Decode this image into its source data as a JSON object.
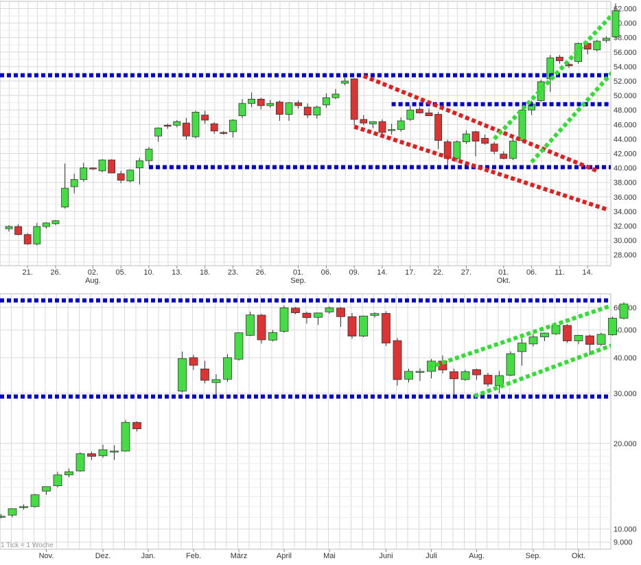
{
  "chart_data": [
    {
      "type": "candlestick",
      "period": "daily",
      "ylim": [
        26500,
        63000
      ],
      "y_ticks": [
        28000,
        30000,
        32000,
        34000,
        36000,
        38000,
        40000,
        42000,
        44000,
        46000,
        48000,
        50000,
        52000,
        54000,
        56000,
        58000,
        60000,
        62000
      ],
      "y_tick_labels": [
        "28.000",
        "30.000",
        "32.000",
        "34.000",
        "36.000",
        "38.000",
        "40.000",
        "42.000",
        "44.000",
        "46.000",
        "48.000",
        "50.000",
        "52.000",
        "54.000",
        "56.000",
        "58.000",
        "60.000",
        "62.000"
      ],
      "x_labels": [
        {
          "text": "21.",
          "month": "",
          "slot": 2
        },
        {
          "text": "26.",
          "month": "",
          "slot": 5
        },
        {
          "text": "02.",
          "month": "Aug.",
          "slot": 9
        },
        {
          "text": "05.",
          "month": "",
          "slot": 12
        },
        {
          "text": "10.",
          "month": "",
          "slot": 15
        },
        {
          "text": "13.",
          "month": "",
          "slot": 18
        },
        {
          "text": "18.",
          "month": "",
          "slot": 21
        },
        {
          "text": "23.",
          "month": "",
          "slot": 24
        },
        {
          "text": "26.",
          "month": "",
          "slot": 27
        },
        {
          "text": "01.",
          "month": "Sep.",
          "slot": 31
        },
        {
          "text": "06.",
          "month": "",
          "slot": 34
        },
        {
          "text": "09.",
          "month": "",
          "slot": 37
        },
        {
          "text": "14.",
          "month": "",
          "slot": 40
        },
        {
          "text": "17.",
          "month": "",
          "slot": 43
        },
        {
          "text": "22.",
          "month": "",
          "slot": 46
        },
        {
          "text": "27.",
          "month": "",
          "slot": 49
        },
        {
          "text": "01.",
          "month": "Okt.",
          "slot": 53
        },
        {
          "text": "06.",
          "month": "",
          "slot": 56
        },
        {
          "text": "11.",
          "month": "",
          "slot": 59
        },
        {
          "text": "14.",
          "month": "",
          "slot": 62
        }
      ],
      "candles": [
        {
          "o": 31600,
          "h": 32100,
          "l": 31200,
          "c": 31900
        },
        {
          "o": 31900,
          "h": 32200,
          "l": 30700,
          "c": 30800
        },
        {
          "o": 30800,
          "h": 31000,
          "l": 29400,
          "c": 29500
        },
        {
          "o": 29500,
          "h": 32400,
          "l": 29300,
          "c": 31900
        },
        {
          "o": 31900,
          "h": 32500,
          "l": 31600,
          "c": 32400
        },
        {
          "o": 32300,
          "h": 32800,
          "l": 32100,
          "c": 32700
        },
        {
          "o": 34600,
          "h": 40600,
          "l": 34400,
          "c": 37200
        },
        {
          "o": 37400,
          "h": 39200,
          "l": 36500,
          "c": 38400
        },
        {
          "o": 38400,
          "h": 40700,
          "l": 38100,
          "c": 40000
        },
        {
          "o": 40000,
          "h": 40100,
          "l": 39700,
          "c": 39900
        },
        {
          "o": 39600,
          "h": 41200,
          "l": 39400,
          "c": 41100
        },
        {
          "o": 41100,
          "h": 41200,
          "l": 39300,
          "c": 39300
        },
        {
          "o": 39200,
          "h": 39600,
          "l": 37900,
          "c": 38300
        },
        {
          "o": 38200,
          "h": 39800,
          "l": 38000,
          "c": 39700
        },
        {
          "o": 40000,
          "h": 41400,
          "l": 37700,
          "c": 41000
        },
        {
          "o": 41000,
          "h": 42900,
          "l": 40300,
          "c": 42600
        },
        {
          "o": 44400,
          "h": 45600,
          "l": 43600,
          "c": 45500
        },
        {
          "o": 45900,
          "h": 46100,
          "l": 45400,
          "c": 45800
        },
        {
          "o": 45900,
          "h": 46600,
          "l": 45600,
          "c": 46400
        },
        {
          "o": 46200,
          "h": 46900,
          "l": 43900,
          "c": 44400
        },
        {
          "o": 44300,
          "h": 47900,
          "l": 44100,
          "c": 47700
        },
        {
          "o": 47300,
          "h": 47900,
          "l": 46100,
          "c": 46600
        },
        {
          "o": 46100,
          "h": 46300,
          "l": 44700,
          "c": 45100
        },
        {
          "o": 44900,
          "h": 45100,
          "l": 44600,
          "c": 44800
        },
        {
          "o": 45000,
          "h": 46700,
          "l": 44200,
          "c": 46600
        },
        {
          "o": 47200,
          "h": 49500,
          "l": 46900,
          "c": 48900
        },
        {
          "o": 48900,
          "h": 50400,
          "l": 48400,
          "c": 49500
        },
        {
          "o": 49500,
          "h": 49700,
          "l": 48100,
          "c": 48600
        },
        {
          "o": 48600,
          "h": 49400,
          "l": 48300,
          "c": 48900
        },
        {
          "o": 49100,
          "h": 49300,
          "l": 46500,
          "c": 47400
        },
        {
          "o": 47400,
          "h": 49100,
          "l": 46500,
          "c": 49000
        },
        {
          "o": 49000,
          "h": 49300,
          "l": 48200,
          "c": 48600
        },
        {
          "o": 48400,
          "h": 48900,
          "l": 46900,
          "c": 47300
        },
        {
          "o": 47300,
          "h": 48600,
          "l": 46800,
          "c": 48400
        },
        {
          "o": 48700,
          "h": 50300,
          "l": 48300,
          "c": 49700
        },
        {
          "o": 49700,
          "h": 50900,
          "l": 49500,
          "c": 50200
        },
        {
          "o": 51700,
          "h": 52500,
          "l": 51400,
          "c": 52000
        },
        {
          "o": 52300,
          "h": 52400,
          "l": 45900,
          "c": 46700
        },
        {
          "o": 46700,
          "h": 47300,
          "l": 45900,
          "c": 46200
        },
        {
          "o": 46100,
          "h": 46400,
          "l": 45500,
          "c": 46400
        },
        {
          "o": 46400,
          "h": 46700,
          "l": 44700,
          "c": 44900
        },
        {
          "o": 45300,
          "h": 46100,
          "l": 44600,
          "c": 45300
        },
        {
          "o": 45300,
          "h": 47000,
          "l": 45000,
          "c": 46500
        },
        {
          "o": 46700,
          "h": 48600,
          "l": 46500,
          "c": 48000
        },
        {
          "o": 48100,
          "h": 48400,
          "l": 47500,
          "c": 47600
        },
        {
          "o": 47600,
          "h": 48200,
          "l": 47200,
          "c": 47200
        },
        {
          "o": 47400,
          "h": 47700,
          "l": 42600,
          "c": 43800
        },
        {
          "o": 43600,
          "h": 43900,
          "l": 40100,
          "c": 41300
        },
        {
          "o": 41300,
          "h": 43800,
          "l": 40800,
          "c": 43600
        },
        {
          "o": 43600,
          "h": 45200,
          "l": 43300,
          "c": 44700
        },
        {
          "o": 45000,
          "h": 45100,
          "l": 41600,
          "c": 43700
        },
        {
          "o": 44100,
          "h": 44600,
          "l": 43200,
          "c": 43400
        },
        {
          "o": 43300,
          "h": 43600,
          "l": 41900,
          "c": 42300
        },
        {
          "o": 41900,
          "h": 42300,
          "l": 41200,
          "c": 41300
        },
        {
          "o": 41300,
          "h": 44200,
          "l": 41100,
          "c": 43700
        },
        {
          "o": 43800,
          "h": 48700,
          "l": 43600,
          "c": 48000
        },
        {
          "o": 48000,
          "h": 49300,
          "l": 47300,
          "c": 48800
        },
        {
          "o": 49300,
          "h": 52200,
          "l": 49100,
          "c": 51900
        },
        {
          "o": 52300,
          "h": 55600,
          "l": 50500,
          "c": 55200
        },
        {
          "o": 55300,
          "h": 55600,
          "l": 54400,
          "c": 54800
        },
        {
          "o": 54300,
          "h": 54600,
          "l": 53800,
          "c": 54100
        },
        {
          "o": 54700,
          "h": 57300,
          "l": 54400,
          "c": 57200
        },
        {
          "o": 57200,
          "h": 57400,
          "l": 55700,
          "c": 56400
        },
        {
          "o": 56300,
          "h": 57700,
          "l": 56100,
          "c": 57500
        },
        {
          "o": 57600,
          "h": 58200,
          "l": 57300,
          "c": 57900
        },
        {
          "o": 58100,
          "h": 62700,
          "l": 57800,
          "c": 61700
        }
      ],
      "horizontal_levels": [
        {
          "value": 52800,
          "color": "#0000cc"
        },
        {
          "value": 48800,
          "color": "#0000cc",
          "from_slot": 41
        },
        {
          "value": 40100,
          "color": "#0000cc",
          "from_slot": 15
        }
      ],
      "trend_lines": [
        {
          "points": [
            [
              38,
              52700
            ],
            [
              63,
              39600
            ]
          ],
          "color": "#e02020"
        },
        {
          "points": [
            [
              37,
              45700
            ],
            [
              64,
              34300
            ]
          ],
          "color": "#e02020"
        },
        {
          "points": [
            [
              52,
              44000
            ],
            [
              66,
              63000
            ]
          ],
          "color": "#33dd33"
        },
        {
          "points": [
            [
              56,
              40800
            ],
            [
              68,
              58000
            ]
          ],
          "color": "#33dd33"
        }
      ],
      "colors": {
        "up": "#44dd44",
        "down": "#dd3333",
        "wick": "#333333",
        "grid": "#d8d8d8"
      }
    },
    {
      "type": "candlestick",
      "period": "weekly",
      "scale": "log",
      "ylim": [
        8500,
        67000
      ],
      "y_ticks": [
        9000,
        10000,
        20000,
        30000,
        40000,
        50000,
        60000
      ],
      "y_tick_labels": [
        "9.000",
        "10.000",
        "20.000",
        "30.000",
        "40.000",
        "50.000",
        "60.000"
      ],
      "x_labels": [
        {
          "text": "Nov.",
          "slot": 4
        },
        {
          "text": "Dez.",
          "slot": 9
        },
        {
          "text": "Jan.",
          "slot": 13
        },
        {
          "text": "Feb.",
          "slot": 17
        },
        {
          "text": "März",
          "slot": 21
        },
        {
          "text": "April",
          "slot": 25
        },
        {
          "text": "Mai",
          "slot": 29
        },
        {
          "text": "Juni",
          "slot": 34
        },
        {
          "text": "Juli",
          "slot": 38
        },
        {
          "text": "Aug.",
          "slot": 42
        },
        {
          "text": "Sep.",
          "slot": 47
        },
        {
          "text": "Okt.",
          "slot": 51
        }
      ],
      "note": "1 Tick = 1 Woche",
      "candles": [
        {
          "o": 11100,
          "h": 11300,
          "l": 10900,
          "c": 11100
        },
        {
          "o": 11200,
          "h": 11800,
          "l": 11000,
          "c": 11800
        },
        {
          "o": 11900,
          "h": 12200,
          "l": 11700,
          "c": 12000
        },
        {
          "o": 12000,
          "h": 13300,
          "l": 11900,
          "c": 13200
        },
        {
          "o": 13600,
          "h": 14100,
          "l": 13200,
          "c": 14100
        },
        {
          "o": 14200,
          "h": 15900,
          "l": 14000,
          "c": 15500
        },
        {
          "o": 15500,
          "h": 16300,
          "l": 15200,
          "c": 15900
        },
        {
          "o": 16000,
          "h": 18600,
          "l": 15900,
          "c": 18400
        },
        {
          "o": 18400,
          "h": 18700,
          "l": 17500,
          "c": 18000
        },
        {
          "o": 18100,
          "h": 19800,
          "l": 17800,
          "c": 19000
        },
        {
          "o": 18800,
          "h": 19700,
          "l": 17500,
          "c": 18800
        },
        {
          "o": 18800,
          "h": 24200,
          "l": 18700,
          "c": 23700
        },
        {
          "o": 23700,
          "h": 23900,
          "l": 22000,
          "c": 22500
        },
        null,
        null,
        null,
        {
          "o": 30500,
          "h": 42000,
          "l": 30200,
          "c": 39700
        },
        {
          "o": 40000,
          "h": 40900,
          "l": 36200,
          "c": 37600
        },
        {
          "o": 36500,
          "h": 39000,
          "l": 32500,
          "c": 33300
        },
        {
          "o": 32700,
          "h": 35000,
          "l": 29300,
          "c": 33500
        },
        {
          "o": 33600,
          "h": 41200,
          "l": 32900,
          "c": 40000
        },
        {
          "o": 39500,
          "h": 49100,
          "l": 39000,
          "c": 48900
        },
        {
          "o": 47900,
          "h": 58000,
          "l": 47600,
          "c": 56500
        },
        {
          "o": 56400,
          "h": 57000,
          "l": 44800,
          "c": 46200
        },
        {
          "o": 46100,
          "h": 50000,
          "l": 45600,
          "c": 49000
        },
        {
          "o": 49500,
          "h": 61000,
          "l": 48900,
          "c": 59800
        },
        {
          "o": 59700,
          "h": 60200,
          "l": 56800,
          "c": 57500
        },
        {
          "o": 57300,
          "h": 58000,
          "l": 52700,
          "c": 55300
        },
        {
          "o": 55400,
          "h": 57600,
          "l": 52100,
          "c": 57400
        },
        {
          "o": 57900,
          "h": 60500,
          "l": 57000,
          "c": 59800
        },
        {
          "o": 59700,
          "h": 60200,
          "l": 51300,
          "c": 55700
        },
        {
          "o": 55700,
          "h": 57400,
          "l": 46600,
          "c": 47600
        },
        {
          "o": 47600,
          "h": 56200,
          "l": 47200,
          "c": 56000
        },
        {
          "o": 56300,
          "h": 57700,
          "l": 55200,
          "c": 57100
        },
        {
          "o": 57200,
          "h": 58200,
          "l": 43900,
          "c": 45000
        },
        {
          "o": 45900,
          "h": 46900,
          "l": 31900,
          "c": 33500
        },
        {
          "o": 33600,
          "h": 36600,
          "l": 32700,
          "c": 35800
        },
        {
          "o": 35800,
          "h": 36700,
          "l": 33100,
          "c": 35800
        },
        {
          "o": 35800,
          "h": 39600,
          "l": 33800,
          "c": 38900
        },
        {
          "o": 38900,
          "h": 40700,
          "l": 35200,
          "c": 36200
        },
        {
          "o": 35700,
          "h": 36600,
          "l": 29600,
          "c": 33700
        },
        {
          "o": 33500,
          "h": 36300,
          "l": 33200,
          "c": 35700
        },
        {
          "o": 36300,
          "h": 36600,
          "l": 33400,
          "c": 34800
        },
        {
          "o": 34700,
          "h": 35400,
          "l": 31600,
          "c": 32300
        },
        {
          "o": 31900,
          "h": 35900,
          "l": 30000,
          "c": 34600
        },
        {
          "o": 34700,
          "h": 42100,
          "l": 34400,
          "c": 41300
        },
        {
          "o": 42000,
          "h": 46700,
          "l": 37500,
          "c": 45000
        },
        {
          "o": 44700,
          "h": 48500,
          "l": 43800,
          "c": 47300
        },
        {
          "o": 47300,
          "h": 49000,
          "l": 45700,
          "c": 48800
        },
        {
          "o": 48500,
          "h": 52800,
          "l": 48000,
          "c": 51900
        },
        {
          "o": 51900,
          "h": 52500,
          "l": 45100,
          "c": 45800
        },
        {
          "o": 45800,
          "h": 48100,
          "l": 44600,
          "c": 47900
        },
        {
          "o": 47700,
          "h": 48200,
          "l": 40800,
          "c": 44500
        },
        {
          "o": 44500,
          "h": 48900,
          "l": 44000,
          "c": 48300
        },
        {
          "o": 48100,
          "h": 55800,
          "l": 47800,
          "c": 55000
        },
        {
          "o": 55000,
          "h": 62700,
          "l": 54500,
          "c": 61700
        }
      ],
      "horizontal_levels": [
        {
          "value": 63500,
          "color": "#0000cc"
        },
        {
          "value": 29200,
          "color": "#0000cc"
        }
      ],
      "trend_lines": [
        {
          "points": [
            [
              37.8,
              37000
            ],
            [
              55.5,
              64000
            ]
          ],
          "color": "#33dd33"
        },
        {
          "points": [
            [
              41.8,
              29300
            ],
            [
              57,
              49000
            ]
          ],
          "color": "#33dd33"
        }
      ],
      "colors": {
        "up": "#44dd44",
        "down": "#dd3333",
        "wick": "#333333",
        "grid": "#d8d8d8"
      }
    }
  ]
}
